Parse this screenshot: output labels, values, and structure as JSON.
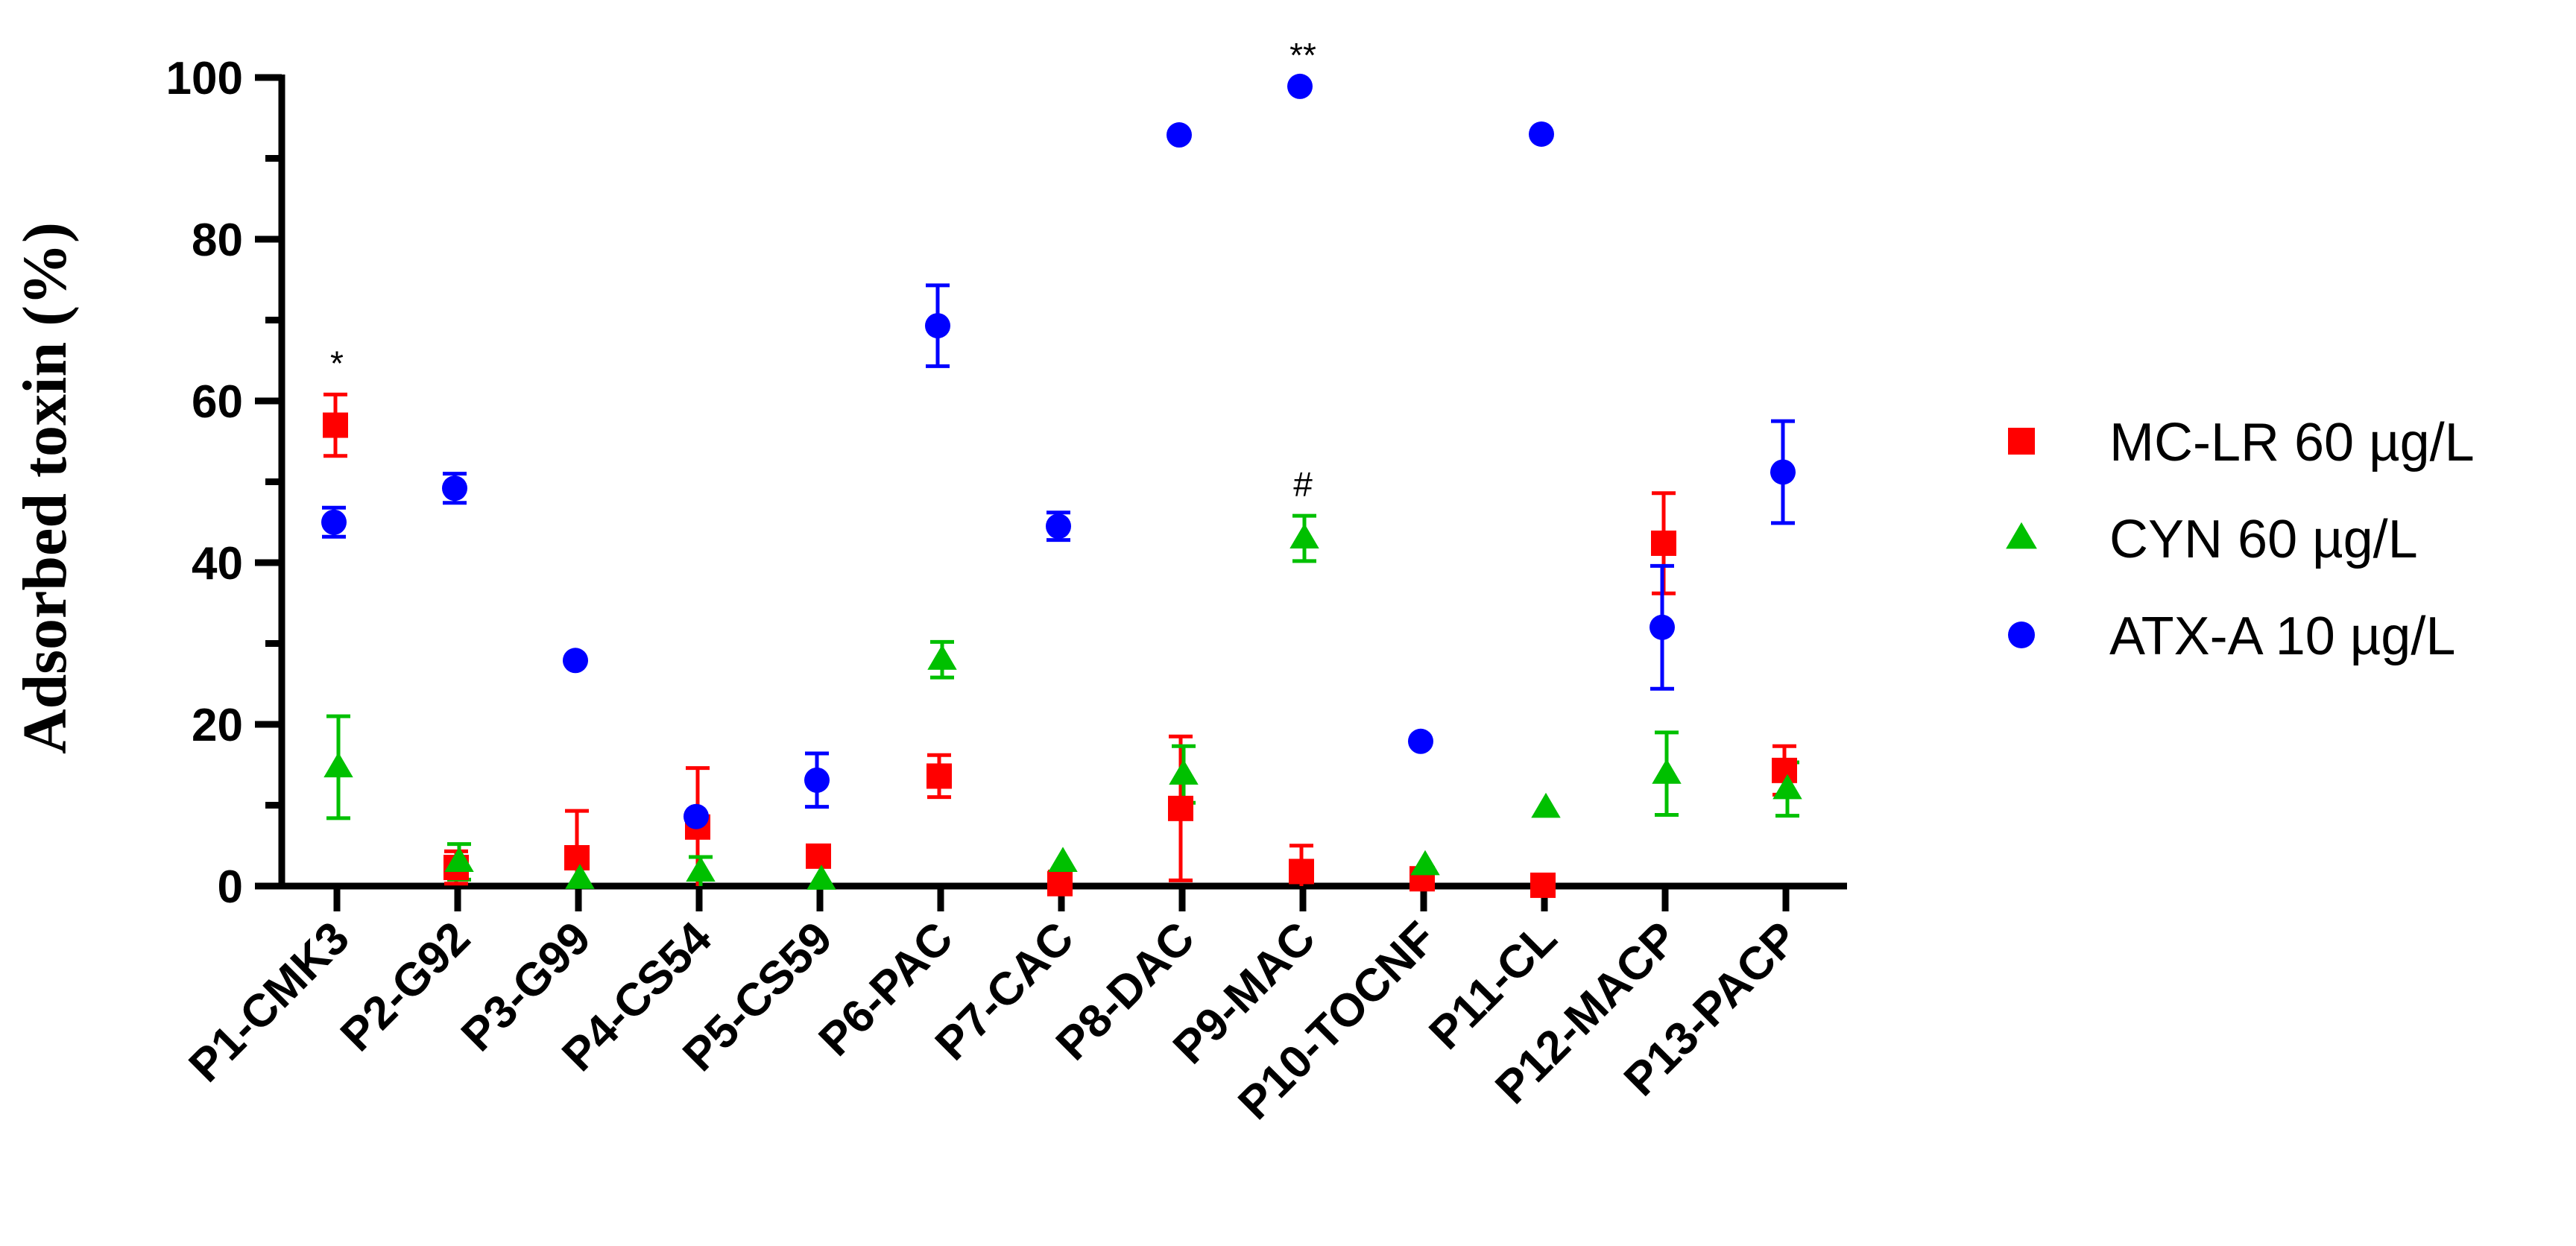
{
  "chart_data": {
    "type": "scatter",
    "title": "",
    "xlabel": "",
    "ylabel": "Adsorbed toxin (%)",
    "ylim": [
      0,
      100
    ],
    "yticks": [
      0,
      20,
      40,
      60,
      80,
      100
    ],
    "grid": false,
    "legend_position": "right",
    "categories": [
      "P1-CMK3",
      "P2-G92",
      "P3-G99",
      "P4-CS54",
      "P5-CS59",
      "P6-PAC",
      "P7-CAC",
      "P8-DAC",
      "P9-MAC",
      "P10-TOCNF",
      "P11-CL",
      "P12-MACP",
      "P13-PACP"
    ],
    "series": [
      {
        "name": "MC-LR 60 µg/L",
        "marker": "square",
        "color": "#ff0000",
        "values": [
          57,
          2.3,
          3.5,
          7.3,
          3.7,
          13.6,
          0.3,
          9.6,
          1.8,
          0.9,
          0.1,
          42.4,
          14.3
        ],
        "errors": [
          3.8,
          2.0,
          5.8,
          7.3,
          0.8,
          2.6,
          1.5,
          8.9,
          3.2,
          0.8,
          0.6,
          6.2,
          3.0
        ]
      },
      {
        "name": "CYN 60 µg/L",
        "marker": "triangle",
        "color": "#00c000",
        "values": [
          14.7,
          3.0,
          0.9,
          1.8,
          0.8,
          28.0,
          3.0,
          13.8,
          43.0,
          2.6,
          9.7,
          13.9,
          12.0
        ],
        "errors": [
          6.3,
          2.2,
          0.0,
          1.8,
          0.0,
          2.2,
          0.0,
          3.5,
          2.8,
          0.0,
          0.0,
          5.1,
          3.3
        ]
      },
      {
        "name": "ATX-A 10 µg/L",
        "marker": "circle",
        "color": "#0000ff",
        "values": [
          45,
          49.2,
          27.9,
          8.6,
          13.1,
          69.3,
          44.5,
          92.9,
          98.9,
          17.9,
          93.0,
          32.0,
          51.2
        ],
        "errors": [
          1.8,
          1.8,
          0.0,
          0.0,
          3.3,
          5.0,
          1.7,
          0.0,
          0.0,
          0.0,
          0.0,
          7.6,
          6.3
        ]
      }
    ],
    "annotations": [
      {
        "category": "P1-CMK3",
        "value": 60.8,
        "text": "*"
      },
      {
        "category": "P9-MAC",
        "value": 45.8,
        "text": "#"
      },
      {
        "category": "P9-MAC",
        "value": 98.9,
        "text": "**"
      }
    ]
  }
}
